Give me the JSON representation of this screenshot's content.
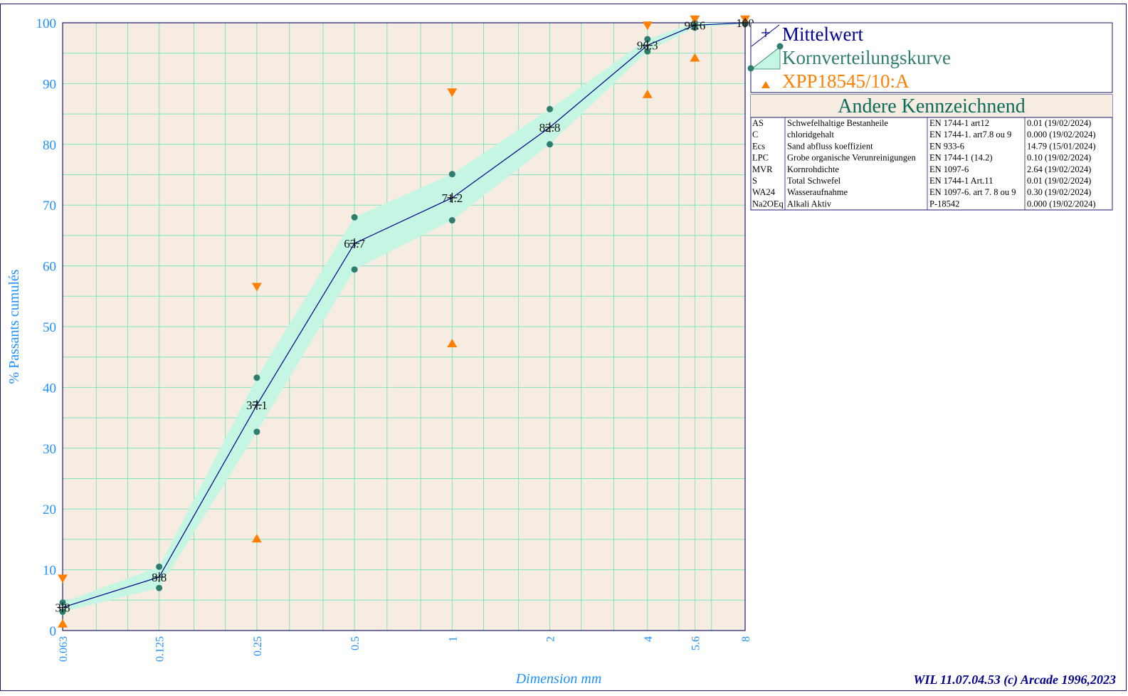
{
  "chart_data": {
    "type": "line",
    "xlabel": "Dimension mm",
    "ylabel": "% Passants cumulés",
    "x_scale": "log",
    "x_ticks": [
      "0.063",
      "0.125",
      "0.25",
      "0.5",
      "1",
      "2",
      "4",
      "5.6",
      "8"
    ],
    "x_tick_values": [
      0.063,
      0.125,
      0.25,
      0.5,
      1,
      2,
      4,
      5.6,
      8
    ],
    "ylim": [
      0,
      100
    ],
    "y_ticks": [
      0,
      10,
      20,
      30,
      40,
      50,
      60,
      70,
      80,
      90,
      100
    ],
    "grid": true,
    "legend_position": "top-right",
    "series": [
      {
        "name": "Mittelwert",
        "color": "#00008b",
        "marker": "plus",
        "x": [
          0.063,
          0.125,
          0.25,
          0.5,
          1,
          2,
          4,
          5.6,
          8
        ],
        "values": [
          3.8,
          8.8,
          37.1,
          63.7,
          71.2,
          82.8,
          96.3,
          99.6,
          100
        ],
        "labels": [
          "3.8",
          "8.8",
          "37.1",
          "63.7",
          "71.2",
          "82.8",
          "96.3",
          "99.6",
          "100"
        ]
      },
      {
        "name": "Kornverteilungskurve",
        "color": "#2e7d6f",
        "fill": "#c5f5e3",
        "marker": "dot",
        "x": [
          0.063,
          0.125,
          0.25,
          0.5,
          1,
          2,
          4,
          5.6,
          8
        ],
        "upper": [
          4.6,
          10.5,
          41.6,
          68.0,
          75.1,
          85.8,
          97.3,
          100,
          100
        ],
        "lower": [
          3.1,
          7.0,
          32.7,
          59.4,
          67.5,
          80.0,
          95.3,
          99.2,
          99.8
        ]
      },
      {
        "name": "XPP18545/10:A",
        "color": "#ff7f00",
        "marker": "triangle",
        "x": [
          0.063,
          0.25,
          1,
          4,
          5.6,
          8
        ],
        "upper": [
          8.5,
          56.5,
          88.5,
          99.5,
          100.5,
          100.5
        ],
        "lower": [
          1.2,
          15.2,
          47.3,
          88.3,
          94.3,
          null
        ]
      }
    ]
  },
  "legend": {
    "items": [
      {
        "label": "Mittelwert",
        "color": "#00008b"
      },
      {
        "label": "Kornverteilungskurve",
        "color": "#2e7d6f"
      },
      {
        "label": "XPP18545/10:A",
        "color": "#ff7f00"
      }
    ]
  },
  "table": {
    "title": "Andere Kennzeichnend",
    "rows": [
      {
        "code": "AS",
        "name": "Schwefelhaltige Bestanheile",
        "norm": "EN 1744-1 art12",
        "value": "0.01  (19/02/2024)"
      },
      {
        "code": "C",
        "name": "chloridgehalt",
        "norm": "EN 1744-1. art7.8 ou 9",
        "value": "0.000  (19/02/2024)"
      },
      {
        "code": "Ecs",
        "name": "Sand abfluss koeffizient",
        "norm": "EN 933-6",
        "value": "14.79  (15/01/2024)"
      },
      {
        "code": "LPC",
        "name": "Grobe organische Verunreinigungen",
        "norm": "EN 1744-1 (14.2)",
        "value": "0.10  (19/02/2024)"
      },
      {
        "code": "MVR",
        "name": "Kornrohdichte",
        "norm": "EN 1097-6",
        "value": "2.64  (19/02/2024)"
      },
      {
        "code": "S",
        "name": "Total Schwefel",
        "norm": "EN 1744-1 Art.11",
        "value": "0.01  (19/02/2024)"
      },
      {
        "code": "WA24",
        "name": "Wasseraufnahme",
        "norm": "EN 1097-6. art 7. 8 ou 9",
        "value": "0.30  (19/02/2024)"
      },
      {
        "code": "Na2OEq",
        "name": "Alkali Aktiv",
        "norm": "P-18542",
        "value": "0.000  (19/02/2024)"
      }
    ]
  },
  "footer": {
    "software": "WIL 11.07.04.53 (c) Arcade 1996,2023"
  },
  "colors": {
    "plot_background": "#f7ece2",
    "grid": "#7fe3c2",
    "axis": "#1a1a6e",
    "tick_text": "#1e90ff"
  }
}
